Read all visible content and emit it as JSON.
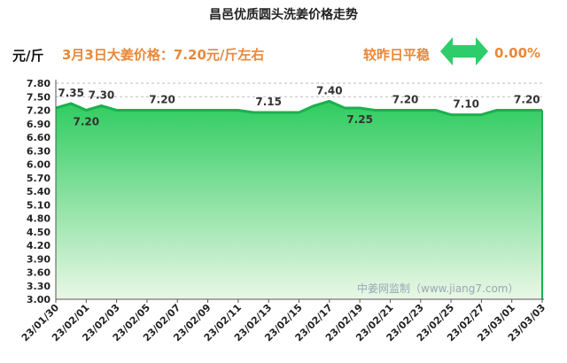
{
  "chart_data": {
    "type": "area",
    "title": "昌邑优质圆头洗姜价格走势",
    "ylabel": "元/斤",
    "ylim": [
      3.0,
      7.8
    ],
    "yticks": [
      "3.00",
      "3.30",
      "3.60",
      "3.90",
      "4.20",
      "4.50",
      "4.80",
      "5.10",
      "5.40",
      "5.70",
      "6.00",
      "6.30",
      "6.60",
      "6.90",
      "7.20",
      "7.50",
      "7.80"
    ],
    "x": [
      "23/01/30",
      "23/01/31",
      "23/02/01",
      "23/02/02",
      "23/02/03",
      "23/02/04",
      "23/02/05",
      "23/02/06",
      "23/02/07",
      "23/02/08",
      "23/02/09",
      "23/02/10",
      "23/02/11",
      "23/02/12",
      "23/02/13",
      "23/02/14",
      "23/02/15",
      "23/02/16",
      "23/02/17",
      "23/02/18",
      "23/02/19",
      "23/02/20",
      "23/02/21",
      "23/02/22",
      "23/02/23",
      "23/02/24",
      "23/02/25",
      "23/02/26",
      "23/02/27",
      "23/02/28",
      "23/03/01",
      "23/03/02",
      "23/03/03"
    ],
    "values": [
      7.25,
      7.35,
      7.2,
      7.3,
      7.2,
      7.2,
      7.2,
      7.2,
      7.2,
      7.2,
      7.2,
      7.2,
      7.2,
      7.15,
      7.15,
      7.15,
      7.15,
      7.3,
      7.4,
      7.25,
      7.25,
      7.2,
      7.2,
      7.2,
      7.2,
      7.2,
      7.1,
      7.1,
      7.1,
      7.2,
      7.2,
      7.2,
      7.2
    ],
    "xticks": [
      "23/01/30",
      "23/02/01",
      "23/02/03",
      "23/02/05",
      "23/02/07",
      "23/02/09",
      "23/02/11",
      "23/02/13",
      "23/02/15",
      "23/02/17",
      "23/02/19",
      "23/02/21",
      "23/02/23",
      "23/02/25",
      "23/02/27",
      "23/03/01",
      "23/03/03"
    ],
    "data_labels": [
      {
        "i": 1,
        "text": "7.35",
        "pos": "above"
      },
      {
        "i": 2,
        "text": "7.20",
        "pos": "below"
      },
      {
        "i": 3,
        "text": "7.30",
        "pos": "above"
      },
      {
        "i": 7,
        "text": "7.20",
        "pos": "above"
      },
      {
        "i": 14,
        "text": "7.15",
        "pos": "above"
      },
      {
        "i": 18,
        "text": "7.40",
        "pos": "above"
      },
      {
        "i": 20,
        "text": "7.25",
        "pos": "below"
      },
      {
        "i": 23,
        "text": "7.20",
        "pos": "above"
      },
      {
        "i": 27,
        "text": "7.10",
        "pos": "above"
      },
      {
        "i": 31,
        "text": "7.20",
        "pos": "above"
      }
    ],
    "grid": "dashed-top",
    "colors": {
      "line": "#1bb04e",
      "fill_top": "#2ecc5f",
      "fill_bottom": "#eaf7e6"
    }
  },
  "header": {
    "price_note": "3月3日大姜价格：7.20元/斤左右",
    "compare_label": "较昨日平稳",
    "compare_value": "0.00%",
    "arrow_icon": "double-arrow-icon"
  },
  "watermark": "中姜网监制（www.jiang7.com）"
}
